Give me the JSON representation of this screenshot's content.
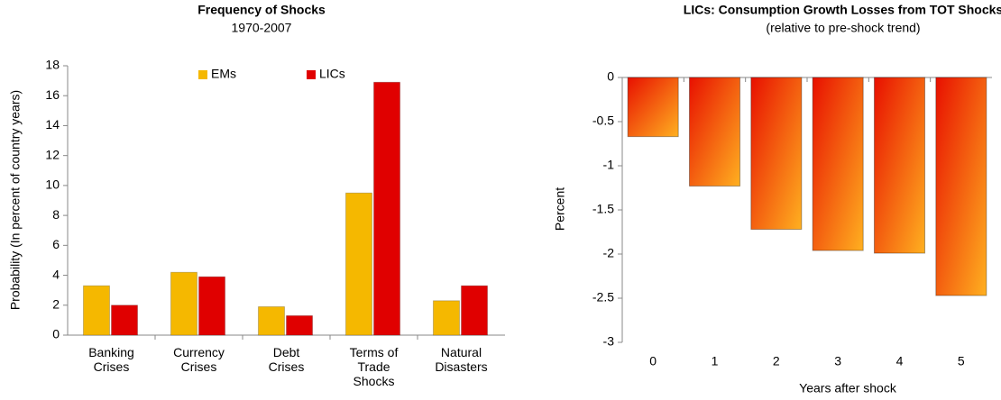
{
  "chart_data": [
    {
      "type": "bar",
      "title": "Frequency of Shocks",
      "subtitle": "1970-2007",
      "y_label": "Probability (In percent of country years)",
      "categories": [
        [
          "Banking",
          "Crises"
        ],
        [
          "Currency",
          "Crises"
        ],
        [
          "Debt",
          "Crises"
        ],
        [
          "Terms of",
          "Trade",
          "Shocks"
        ],
        [
          "Natural",
          "Disasters"
        ]
      ],
      "series": [
        {
          "name": "EMs",
          "color": "#f5b800",
          "values": [
            3.3,
            4.2,
            1.9,
            9.5,
            2.3
          ]
        },
        {
          "name": "LICs",
          "color": "#e00000",
          "values": [
            2.0,
            3.9,
            1.3,
            16.9,
            3.3
          ]
        }
      ],
      "ylim": [
        0,
        18
      ],
      "yticks": [
        0,
        2,
        4,
        6,
        8,
        10,
        12,
        14,
        16,
        18
      ],
      "legend": "top"
    },
    {
      "type": "bar",
      "title": "LICs: Consumption Growth Losses from TOT Shocks",
      "subtitle": "(relative to pre-shock trend)",
      "y_label": "Percent",
      "x_label": "Years after shock",
      "categories": [
        "0",
        "1",
        "2",
        "3",
        "4",
        "5"
      ],
      "values": [
        -0.67,
        -1.23,
        -1.72,
        -1.96,
        -1.99,
        -2.47
      ],
      "color": "#e81000",
      "ylim": [
        -3,
        0
      ],
      "yticks": [
        0,
        -0.5,
        -1,
        -1.5,
        -2,
        -2.5,
        -3
      ]
    }
  ]
}
